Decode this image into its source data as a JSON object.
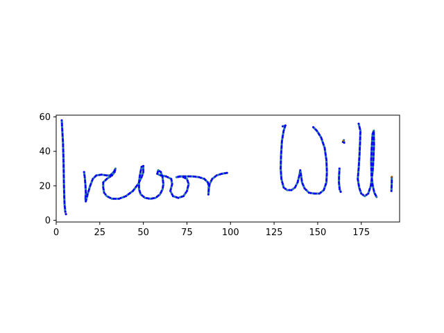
{
  "chart_data": {
    "type": "scatter",
    "title": "",
    "xlabel": "",
    "ylabel": "",
    "xlim": [
      0,
      197
    ],
    "ylim": [
      -1,
      61
    ],
    "x_ticks": [
      0,
      25,
      50,
      75,
      100,
      125,
      150,
      175
    ],
    "y_ticks": [
      0,
      20,
      40,
      60
    ],
    "grid": false,
    "aspect": "equal",
    "colors": {
      "stroke": "#a0a0a0",
      "primary_points": "#0000ff",
      "secondary_points": "#1f77b4",
      "dash": "#000080",
      "accent": "#b35a00"
    },
    "strokes": [
      {
        "name": "stroke-T-vertical",
        "points": [
          [
            3.2,
            58
          ],
          [
            3.5,
            52
          ],
          [
            3.9,
            45
          ],
          [
            4.1,
            38
          ],
          [
            4.3,
            30
          ],
          [
            4.4,
            22
          ],
          [
            4.6,
            15
          ],
          [
            4.8,
            9
          ],
          [
            5.2,
            5
          ],
          [
            5.6,
            3.5
          ]
        ]
      },
      {
        "name": "stroke-revor",
        "points": [
          [
            16,
            28
          ],
          [
            16.5,
            24
          ],
          [
            16.8,
            20
          ],
          [
            17,
            16
          ],
          [
            16.8,
            12
          ],
          [
            17,
            11
          ],
          [
            18,
            15
          ],
          [
            19.5,
            20
          ],
          [
            21,
            24
          ],
          [
            23,
            26
          ],
          [
            26,
            26.5
          ],
          [
            29,
            26
          ],
          [
            31,
            26
          ],
          [
            33,
            28
          ],
          [
            34,
            30
          ],
          [
            33.5,
            28
          ],
          [
            32,
            26
          ],
          [
            29,
            24
          ],
          [
            27,
            22
          ],
          [
            27,
            19
          ],
          [
            27.5,
            16
          ],
          [
            29,
            14
          ],
          [
            32,
            12.5
          ],
          [
            36,
            12.5
          ],
          [
            40,
            14
          ],
          [
            44,
            17
          ],
          [
            47,
            21
          ],
          [
            49,
            25
          ],
          [
            50,
            28
          ],
          [
            50,
            31.5
          ],
          [
            49,
            31
          ],
          [
            48,
            26
          ],
          [
            47.5,
            22
          ],
          [
            47.5,
            18
          ],
          [
            48.5,
            15
          ],
          [
            51,
            13
          ],
          [
            54,
            12.5
          ],
          [
            57,
            13
          ],
          [
            59.5,
            15
          ],
          [
            61,
            18
          ],
          [
            61.5,
            21
          ],
          [
            61,
            25
          ],
          [
            60,
            28
          ],
          [
            58.5,
            29
          ],
          [
            58,
            27
          ],
          [
            60,
            26
          ],
          [
            63,
            25.5
          ],
          [
            66,
            24
          ],
          [
            66.5,
            21
          ],
          [
            65.5,
            17
          ],
          [
            67,
            14
          ],
          [
            70,
            13
          ],
          [
            73,
            14
          ],
          [
            75,
            17
          ],
          [
            76,
            21
          ],
          [
            75,
            24
          ],
          [
            72,
            25.5
          ],
          [
            69,
            25
          ],
          [
            71,
            25.5
          ],
          [
            74,
            25.5
          ],
          [
            78,
            25.5
          ],
          [
            82,
            25
          ],
          [
            85,
            24
          ],
          [
            87,
            22
          ],
          [
            87.5,
            20
          ],
          [
            87.5,
            17
          ],
          [
            87.3,
            15
          ],
          [
            87.5,
            18
          ],
          [
            88,
            21
          ],
          [
            89.5,
            24
          ],
          [
            92,
            26
          ],
          [
            95,
            27
          ],
          [
            98,
            27.5
          ]
        ]
      },
      {
        "name": "stroke-W",
        "points": [
          [
            130,
            54.5
          ],
          [
            131.5,
            55
          ],
          [
            130.5,
            52
          ],
          [
            129.5,
            46
          ],
          [
            129,
            38
          ],
          [
            128.8,
            30
          ],
          [
            129.2,
            24
          ],
          [
            130.5,
            19
          ],
          [
            132.5,
            17.5
          ],
          [
            135,
            17.5
          ],
          [
            137,
            19
          ],
          [
            138.5,
            22
          ],
          [
            139.5,
            26
          ],
          [
            140,
            29
          ],
          [
            140.5,
            26
          ],
          [
            141,
            22
          ],
          [
            142.5,
            18.5
          ],
          [
            145,
            16
          ],
          [
            148,
            15.5
          ],
          [
            151,
            15.5
          ],
          [
            153.5,
            17.5
          ],
          [
            155,
            22
          ],
          [
            155.3,
            28
          ],
          [
            155,
            35
          ],
          [
            154,
            42
          ],
          [
            152,
            48
          ],
          [
            149.5,
            52
          ],
          [
            147.5,
            54
          ]
        ]
      },
      {
        "name": "stroke-i",
        "points": [
          [
            162.5,
            30
          ],
          [
            162.3,
            26
          ],
          [
            162.2,
            22
          ],
          [
            162.6,
            18
          ],
          [
            163.2,
            16.5
          ]
        ]
      },
      {
        "name": "stroke-i-dot",
        "points": [
          [
            164.5,
            45.5
          ],
          [
            165,
            46.5
          ],
          [
            165.2,
            45
          ]
        ]
      },
      {
        "name": "stroke-l1",
        "points": [
          [
            173.5,
            56
          ],
          [
            174.5,
            52
          ],
          [
            174.3,
            45
          ],
          [
            174,
            38
          ],
          [
            173.5,
            30
          ],
          [
            173,
            24
          ],
          [
            173.8,
            19
          ],
          [
            175,
            15.5
          ],
          [
            177,
            14
          ],
          [
            179,
            15.5
          ],
          [
            180.5,
            20
          ],
          [
            181.5,
            28
          ],
          [
            182,
            36
          ],
          [
            182.3,
            44
          ],
          [
            182.2,
            52
          ],
          [
            181.5,
            50
          ],
          [
            181,
            42
          ],
          [
            180.7,
            34
          ],
          [
            180.9,
            26
          ],
          [
            181.6,
            20
          ],
          [
            182.5,
            16
          ],
          [
            183.8,
            13.5
          ]
        ]
      },
      {
        "name": "stroke-l2",
        "points": [
          [
            192.5,
            25
          ],
          [
            192.5,
            22
          ],
          [
            192.4,
            19
          ],
          [
            192.3,
            17
          ]
        ]
      }
    ]
  }
}
